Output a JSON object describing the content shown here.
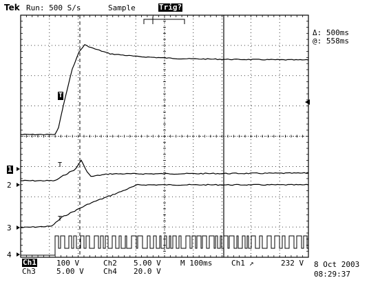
{
  "header": {
    "brand": "Tek",
    "run_state": "Run: 500 S/s",
    "acq_mode": "Sample",
    "trig_status": "Trig?"
  },
  "cursor_readout": {
    "delta": "Δ: 500ms",
    "at": "@: 558ms"
  },
  "channel_markers": {
    "ch1": "1",
    "ch2": "2",
    "ch3": "3",
    "ch4": "4",
    "trigger_marker": "T"
  },
  "settings": {
    "ch1_label": "Ch1",
    "ch1_scale": "100 V",
    "ch2_label": "Ch2",
    "ch2_scale": "5.00 V",
    "ch3_label": "Ch3",
    "ch3_scale": "5.00 V",
    "ch4_label": "Ch4",
    "ch4_scale": "20.0 V",
    "timebase": "M 100ms",
    "trigger_source": "Ch1",
    "trigger_level": "232 V",
    "date": "8 Oct 2003",
    "time": "08:29:37"
  }
}
